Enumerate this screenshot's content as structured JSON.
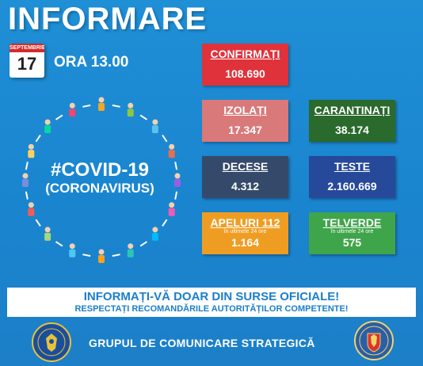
{
  "header": {
    "title": "INFORMARE"
  },
  "date": {
    "month": "SEPTEMBRIE",
    "day": "17",
    "time": "ORA 13.00"
  },
  "center": {
    "hashtag": "#COVID-19",
    "subtitle": "(CORONAVIRUS)"
  },
  "stats": {
    "confirmati": {
      "label": "CONFIRMAȚI",
      "value": "108.690",
      "color": "#e0323a"
    },
    "izolati": {
      "label": "IZOLAȚI",
      "value": "17.347",
      "color": "#d97979"
    },
    "carantinati": {
      "label": "CARANTINAȚI",
      "value": "38.174",
      "color": "#2a6a2c"
    },
    "decese": {
      "label": "DECESE",
      "value": "4.312",
      "color": "#354a6a"
    },
    "teste": {
      "label": "TESTE",
      "value": "2.160.669",
      "color": "#26499a"
    },
    "apeluri": {
      "label": "APELURI 112",
      "sub": "în ultimele 24 ore",
      "value": "1.164",
      "color": "#ef9d22"
    },
    "telverde": {
      "label": "TELVERDE",
      "sub": "în ultimele 24 ore",
      "value": "575",
      "color": "#3fa54a"
    }
  },
  "banner": {
    "line1": "INFORMAȚI-VĂ DOAR DIN SURSE OFICIALE!",
    "line2": "RESPECTAȚI RECOMANDĂRILE AUTORITĂȚILOR COMPETENTE!"
  },
  "footer": {
    "text": "GRUPUL DE COMUNICARE STRATEGICĂ"
  },
  "icons": {
    "left_seal": "guvernul-romaniei-seal-icon",
    "right_seal": "mai-coat-of-arms-icon",
    "ring": "people-circle-icon"
  }
}
